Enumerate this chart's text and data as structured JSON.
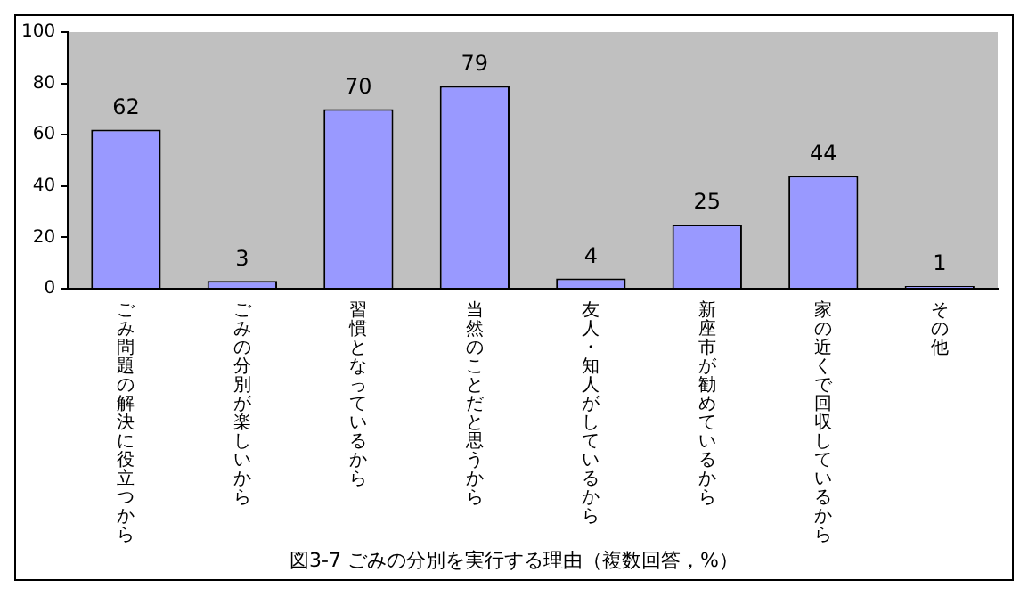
{
  "chart_data": {
    "type": "bar",
    "title": "図3-7 ごみの分別を実行する理由（複数回答，%）",
    "categories": [
      "ごみ問題の解決に役立つから",
      "ごみの分別が楽しいから",
      "習慣となっているから",
      "当然のことだと思うから",
      "友人・知人がしているから",
      "新座市が勧めているから",
      "家の近くで回収しているから",
      "その他"
    ],
    "values": [
      62,
      3,
      70,
      79,
      4,
      25,
      44,
      1
    ],
    "color": "#9999ff",
    "ylim": [
      0,
      100
    ],
    "yticks": [
      0,
      20,
      40,
      60,
      80,
      100
    ],
    "grid": false,
    "legend": false,
    "data_labels": true
  }
}
